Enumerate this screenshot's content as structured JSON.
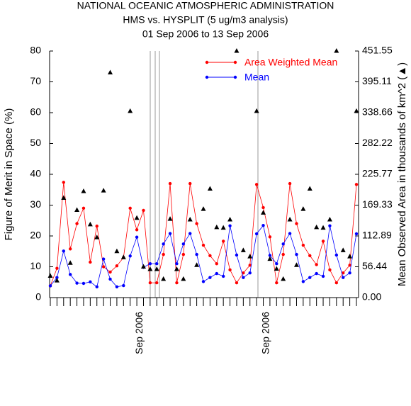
{
  "chart_data": {
    "type": "line",
    "title": "NATIONAL OCEANIC ATMOSPHERIC ADMINISTRATION",
    "subtitle": "HMS vs. HYSPLIT (5 ug/m3 analysis)",
    "date_range": "01 Sep 2006 to 13 Sep 2006",
    "ylabel": "Figure of Merit in Space (%)",
    "y2label": "Mean Observed Area in thousands of km^2 (▲)",
    "categories": [
      null,
      null,
      null,
      null,
      null,
      null,
      null,
      null,
      null,
      null,
      null,
      null,
      null,
      null,
      "Sep 2006",
      null,
      null,
      null,
      null,
      null,
      null,
      null,
      null,
      null,
      null,
      null,
      null,
      null,
      null,
      null,
      null,
      null,
      null,
      "Sep 2006",
      null,
      null,
      null,
      null,
      null,
      null,
      null,
      null,
      null,
      null,
      null,
      null,
      null
    ],
    "series": [
      {
        "name": "Area Weighted Mean",
        "color": "#ff0000",
        "values": [
          3.8,
          9.5,
          37.4,
          15.8,
          24,
          29,
          11.5,
          23.2,
          10,
          8.3,
          10.3,
          13,
          29,
          22,
          28.3,
          4.8,
          4.8,
          14,
          37,
          4.8,
          14,
          37,
          24,
          17,
          13.6,
          11,
          18.3,
          9,
          4.8,
          8,
          10.5,
          36.7,
          29.2,
          19.7,
          4.8,
          14,
          37,
          24,
          17,
          13.6,
          10.7,
          18.3,
          9,
          4.8,
          8,
          10.5,
          36.7
        ]
      },
      {
        "name": "Mean",
        "color": "#0000ff",
        "values": [
          3.8,
          6.5,
          15.1,
          7.5,
          4.7,
          4.6,
          5.1,
          3.5,
          12.5,
          6,
          3.5,
          3.9,
          13.5,
          19.6,
          9.8,
          11,
          11,
          17.4,
          20.8,
          11,
          17.4,
          20.8,
          14,
          5.2,
          6.5,
          7.8,
          6.9,
          23.3,
          13.8,
          6.5,
          8,
          20.7,
          23.4,
          13.7,
          11,
          17.4,
          20.8,
          14,
          5.2,
          6.5,
          7.8,
          6.9,
          23.3,
          13.8,
          6.5,
          8,
          20.7
        ]
      },
      {
        "color": "#000000",
        "marker": "triangle",
        "axis": "y2",
        "values": [
          39.5,
          31,
          182.3,
          63.2,
          160.3,
          194.7,
          133.8,
          110.1,
          195.8,
          412,
          84.7,
          73.4,
          341.5,
          145.6,
          56.4,
          51.9,
          51.9,
          33.9,
          143.9,
          51.9,
          33.9,
          142.8,
          59.3,
          162,
          199.2,
          128.7,
          127.6,
          142.8,
          451.5,
          86.4,
          75.1,
          341.5,
          155.2,
          70.6,
          52.5,
          33.9,
          142.8,
          59.3,
          162,
          199.2,
          128.7,
          127.6,
          142.8,
          451.5,
          86.4,
          75.1,
          341.5
        ]
      }
    ],
    "ylim": [
      0,
      80
    ],
    "yticks": [
      0,
      10,
      20,
      30,
      40,
      50,
      60,
      70,
      80
    ],
    "y2lim": [
      0,
      451.55
    ],
    "y2ticks": [
      {
        "value": 0,
        "label": "0.00"
      },
      56.44,
      112.89,
      169.33,
      225.77,
      282.22,
      338.66,
      395.11,
      451.55
    ],
    "legend": "upper right"
  }
}
